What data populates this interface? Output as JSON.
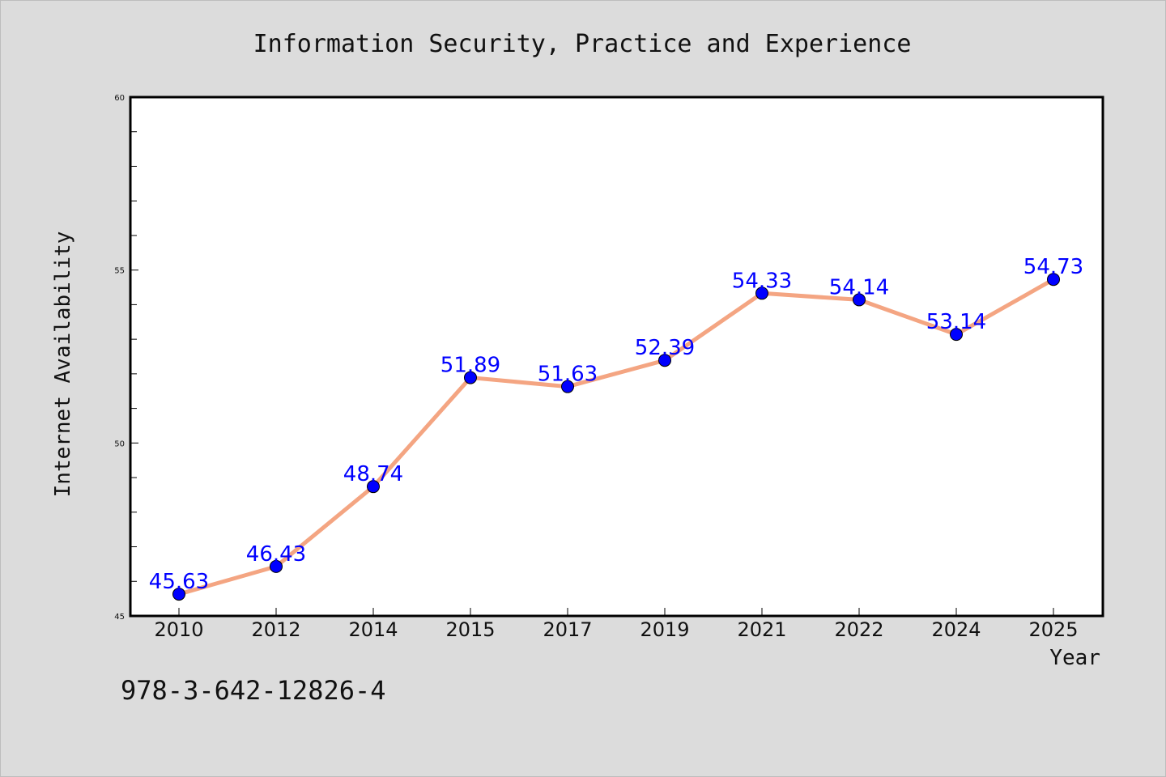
{
  "colors": {
    "background": "#dcdcdc",
    "plot_background": "#ffffff",
    "line": "#f4a582",
    "marker": "#0000ff",
    "data_label": "#0000ff",
    "axis": "#000000"
  },
  "footnote": "978-3-642-12826-4",
  "chart_data": {
    "type": "line",
    "title": "Information Security, Practice and Experience",
    "xlabel": "Year",
    "ylabel": "Internet Availability",
    "categories": [
      "2010",
      "2012",
      "2014",
      "2015",
      "2017",
      "2019",
      "2021",
      "2022",
      "2024",
      "2025"
    ],
    "series": [
      {
        "values": [
          45.63,
          46.43,
          48.74,
          51.89,
          51.63,
          52.39,
          54.33,
          54.14,
          53.14,
          54.73
        ],
        "data_labels": [
          "45.63",
          "46.43",
          "48.74",
          "51.89",
          "51.63",
          "52.39",
          "54.33",
          "54.14",
          "53.14",
          "54.73"
        ]
      }
    ],
    "ylim": [
      45,
      60
    ],
    "yticks": [
      "45",
      "50",
      "55",
      "60"
    ],
    "grid": false,
    "legend": "none"
  }
}
